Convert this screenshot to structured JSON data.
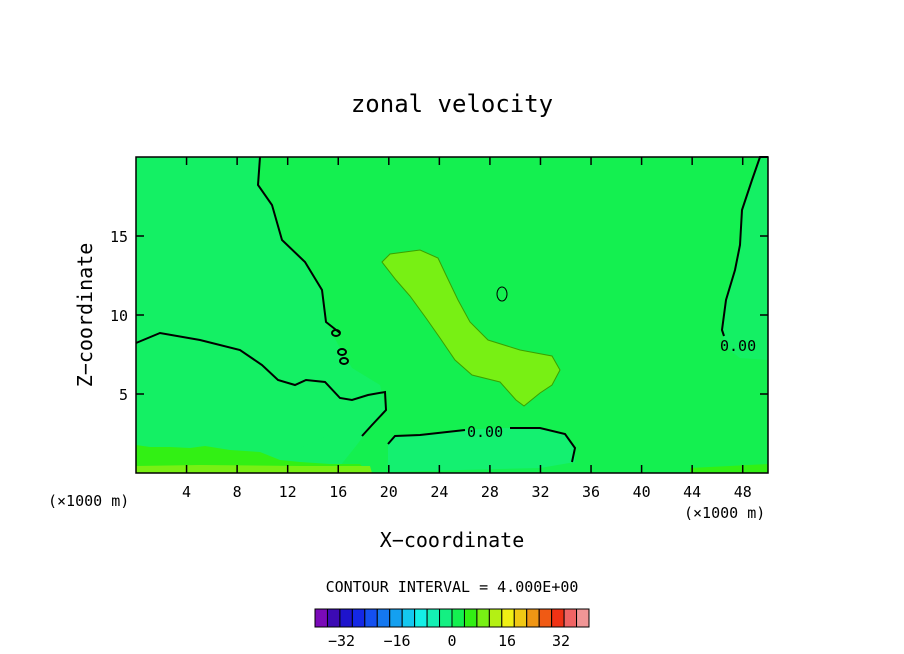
{
  "chart_data": {
    "type": "contour",
    "title": "zonal velocity",
    "xlabel": "X−coordinate",
    "ylabel": "Z−coordinate",
    "x_units_left": "(×1000 m)",
    "x_units_right": "(×1000 m)",
    "xlim": [
      0,
      50
    ],
    "ylim": [
      0,
      20
    ],
    "xticks": [
      4,
      8,
      12,
      16,
      20,
      24,
      28,
      32,
      36,
      40,
      44,
      48
    ],
    "yticks": [
      5,
      10,
      15
    ],
    "contour_labels": [
      "0.00",
      "0.00"
    ],
    "contour_interval_text": "CONTOUR INTERVAL = 4.000E+00",
    "colorbar": {
      "ticks": [
        "−32",
        "−16",
        "0",
        "16",
        "32"
      ],
      "levels_count": 21,
      "colors": [
        "#7a0ab8",
        "#3c0ab4",
        "#1e14cc",
        "#1428e6",
        "#1450f0",
        "#1478f0",
        "#14a0f0",
        "#14c8f0",
        "#14f0e6",
        "#14f0b4",
        "#14f082",
        "#14f050",
        "#32f014",
        "#78f014",
        "#b4f014",
        "#f0f014",
        "#f0c814",
        "#f09614",
        "#f05a14",
        "#f03214",
        "#f06464",
        "#f09696"
      ]
    }
  }
}
